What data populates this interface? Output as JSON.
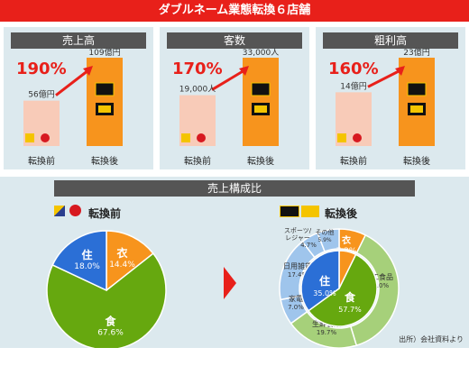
{
  "title": "ダブルネーム業態転換６店舗",
  "panels": [
    {
      "header": "売上高",
      "growth": "190%",
      "before": "56億円",
      "after": "109億円",
      "before_value": 56,
      "after_value": 109
    },
    {
      "header": "客数",
      "growth": "170%",
      "before": "19,000人",
      "after": "33,000人",
      "before_value": 19000,
      "after_value": 33000
    },
    {
      "header": "粗利高",
      "growth": "160%",
      "before": "14億円",
      "after": "23億円",
      "before_value": 14,
      "after_value": 23
    }
  ],
  "before_label": "転換前",
  "after_label": "転換後",
  "composition_header": "売上構成比",
  "before_section": "転換前",
  "after_section": "転換後",
  "source": "出所）会社資料より",
  "colors": {
    "red": "#e8201a",
    "peach": "#f8cbb8",
    "orange": "#f7941d",
    "blue": "#2b6fd6",
    "green": "#66a80f",
    "lightgreen": "#a6d07a",
    "lightblue": "#9fc5ec"
  },
  "chart_data": [
    {
      "type": "bar",
      "title": "売上高",
      "categories": [
        "転換前",
        "転換後"
      ],
      "values": [
        56,
        109
      ],
      "unit": "億円"
    },
    {
      "type": "bar",
      "title": "客数",
      "categories": [
        "転換前",
        "転換後"
      ],
      "values": [
        19000,
        33000
      ],
      "unit": "人"
    },
    {
      "type": "bar",
      "title": "粗利高",
      "categories": [
        "転換前",
        "転換後"
      ],
      "values": [
        14,
        23
      ],
      "unit": "億円"
    },
    {
      "type": "pie",
      "title": "転換前",
      "slices": [
        {
          "label": "衣",
          "value": 14.4
        },
        {
          "label": "食",
          "value": 67.6
        },
        {
          "label": "住",
          "value": 18.0
        }
      ]
    },
    {
      "type": "pie",
      "title": "転換後",
      "outer": [
        {
          "label": "衣",
          "value": 7.3
        },
        {
          "label": "加工食品",
          "value": 38.0
        },
        {
          "label": "生鮮食品",
          "value": 19.7
        },
        {
          "label": "家電",
          "value": 7.0
        },
        {
          "label": "日用雑貨",
          "value": 17.4
        },
        {
          "label": "スポーツ/レジャー",
          "value": 4.7
        },
        {
          "label": "その他",
          "value": 5.9
        }
      ],
      "inner": [
        {
          "label": "衣",
          "value": 7.3
        },
        {
          "label": "食",
          "value": 57.7
        },
        {
          "label": "住",
          "value": 35.0
        }
      ]
    }
  ]
}
